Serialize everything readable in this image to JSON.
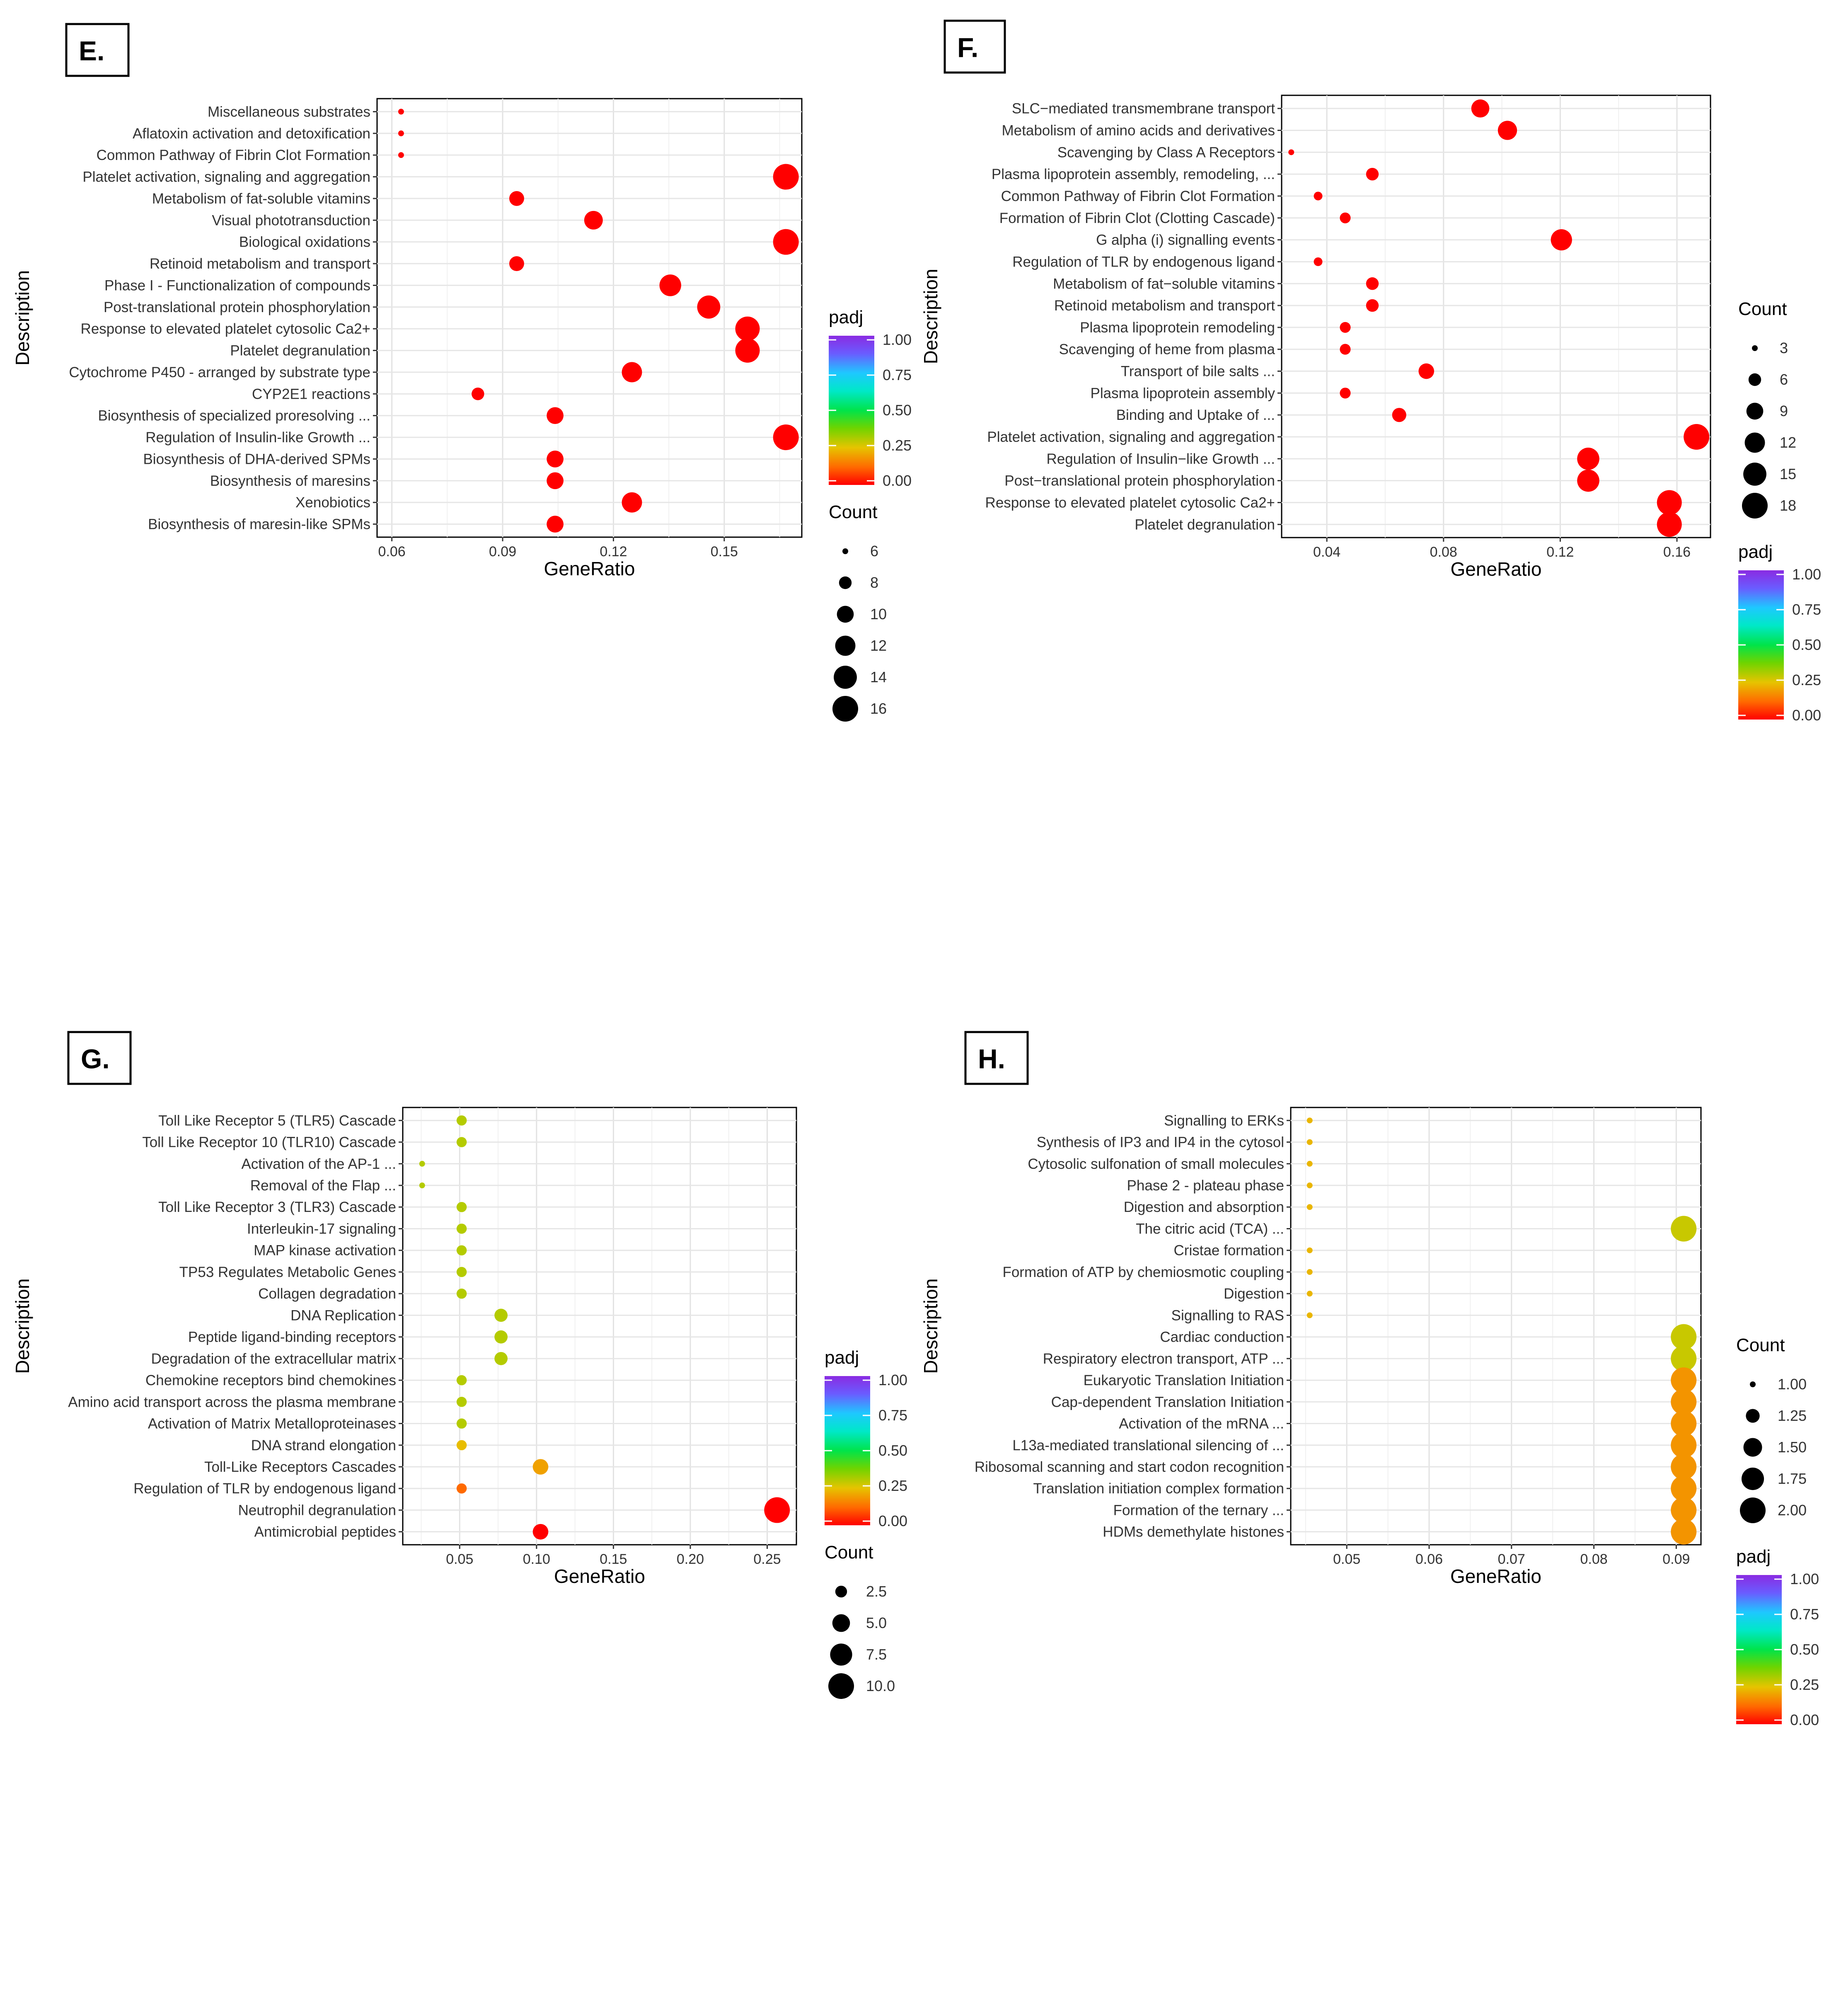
{
  "chart_data": [
    {
      "type": "scatter",
      "panel_label": "E.",
      "xlabel": "GeneRatio",
      "ylabel": "Description",
      "xlim": [
        0.056,
        0.171
      ],
      "xticks": [
        0.06,
        0.09,
        0.12,
        0.15
      ],
      "xtick_labels": [
        "0.06",
        "0.09",
        "0.12",
        "0.15"
      ],
      "categories": [
        "Miscellaneous substrates",
        "Aflatoxin activation and detoxification",
        "Common Pathway of Fibrin Clot Formation",
        "Platelet activation, signaling and aggregation",
        "Metabolism of fat-soluble vitamins",
        "Visual phototransduction",
        "Biological oxidations",
        "Retinoid metabolism and transport",
        "Phase I - Functionalization of compounds",
        "Post-translational protein phosphorylation",
        "Response to elevated platelet cytosolic Ca2+",
        "Platelet degranulation",
        "Cytochrome P450 - arranged by substrate type",
        "CYP2E1 reactions",
        "Biosynthesis of specialized proresolving ...",
        "Regulation of Insulin-like Growth ...",
        "Biosynthesis of DHA-derived SPMs",
        "Biosynthesis of maresins",
        "Xenobiotics",
        "Biosynthesis of maresin-like SPMs"
      ],
      "x": [
        0.0625,
        0.0625,
        0.0625,
        0.1667,
        0.0938,
        0.1146,
        0.1667,
        0.0938,
        0.1354,
        0.1458,
        0.1563,
        0.1563,
        0.125,
        0.0833,
        0.1042,
        0.1667,
        0.1042,
        0.1042,
        0.125,
        0.1042
      ],
      "count": [
        6,
        6,
        6,
        16,
        9,
        11,
        16,
        9,
        13,
        14,
        15,
        15,
        12,
        8,
        10,
        16,
        10,
        10,
        12,
        10
      ],
      "padj": [
        0.0,
        0.0,
        0.0,
        0.0,
        0.0,
        0.0,
        0.0,
        0.0,
        0.0,
        0.0,
        0.0,
        0.0,
        0.0,
        0.0,
        0.0,
        0.0,
        0.0,
        0.0,
        0.0,
        0.0
      ],
      "count_range": [
        6,
        16
      ],
      "legend_order": [
        "padj",
        "count"
      ],
      "padj_legend": {
        "title": "padj",
        "ticks": [
          "1.00",
          "0.75",
          "0.50",
          "0.25",
          "0.00"
        ]
      },
      "count_legend": {
        "title": "Count",
        "values": [
          6,
          8,
          10,
          12,
          14,
          16
        ],
        "labels": [
          "6",
          "8",
          "10",
          "12",
          "14",
          "16"
        ]
      }
    },
    {
      "type": "scatter",
      "panel_label": "F.",
      "xlabel": "GeneRatio",
      "ylabel": "Description",
      "xlim": [
        0.0245,
        0.1715
      ],
      "xticks": [
        0.04,
        0.08,
        0.12,
        0.16
      ],
      "xtick_labels": [
        "0.04",
        "0.08",
        "0.12",
        "0.16"
      ],
      "categories": [
        "SLC−mediated transmembrane transport",
        "Metabolism of amino acids and derivatives",
        "Scavenging by Class A Receptors",
        "Plasma lipoprotein assembly, remodeling, ...",
        "Common Pathway of Fibrin Clot Formation",
        "Formation of Fibrin Clot (Clotting Cascade)",
        "G alpha (i) signalling events",
        "Regulation of TLR by endogenous ligand",
        "Metabolism of fat−soluble vitamins",
        "Retinoid metabolism and transport",
        "Plasma lipoprotein remodeling",
        "Scavenging of heme from plasma",
        "Transport of bile salts ...",
        "Plasma lipoprotein assembly",
        "Binding and Uptake of ...",
        "Platelet activation, signaling and aggregation",
        "Regulation of Insulin−like Growth ...",
        "Post−translational protein phosphorylation",
        "Response to elevated platelet cytosolic Ca2+",
        "Platelet degranulation"
      ],
      "x": [
        0.0926,
        0.1019,
        0.0278,
        0.0556,
        0.037,
        0.0463,
        0.1204,
        0.037,
        0.0556,
        0.0556,
        0.0463,
        0.0463,
        0.0741,
        0.0463,
        0.0648,
        0.1667,
        0.1296,
        0.1296,
        0.1574,
        0.1574
      ],
      "count": [
        10,
        11,
        3,
        6,
        4,
        5,
        13,
        4,
        6,
        6,
        5,
        5,
        8,
        5,
        7,
        18,
        14,
        14,
        17,
        17
      ],
      "padj": [
        0.0,
        0.0,
        0.0,
        0.0,
        0.0,
        0.0,
        0.0,
        0.0,
        0.0,
        0.0,
        0.0,
        0.0,
        0.0,
        0.0,
        0.0,
        0.0,
        0.0,
        0.0,
        0.0,
        0.0
      ],
      "count_range": [
        3,
        18
      ],
      "legend_order": [
        "count",
        "padj"
      ],
      "padj_legend": {
        "title": "padj",
        "ticks": [
          "1.00",
          "0.75",
          "0.50",
          "0.25",
          "0.00"
        ]
      },
      "count_legend": {
        "title": "Count",
        "values": [
          3,
          6,
          9,
          12,
          15,
          18
        ],
        "labels": [
          "3",
          "6",
          "9",
          "12",
          "15",
          "18"
        ]
      }
    },
    {
      "type": "scatter",
      "panel_label": "G.",
      "xlabel": "GeneRatio",
      "ylabel": "Description",
      "xlim": [
        0.013,
        0.269
      ],
      "xticks": [
        0.05,
        0.1,
        0.15,
        0.2,
        0.25
      ],
      "xtick_labels": [
        "0.05",
        "0.10",
        "0.15",
        "0.20",
        "0.25"
      ],
      "categories": [
        "Toll Like Receptor 5 (TLR5) Cascade",
        "Toll Like Receptor 10 (TLR10) Cascade",
        "Activation of the AP-1 ...",
        "Removal of the Flap ...",
        "Toll Like Receptor 3 (TLR3) Cascade",
        "Interleukin-17 signaling",
        "MAP kinase activation",
        "TP53 Regulates Metabolic Genes",
        "Collagen degradation",
        "DNA Replication",
        "Peptide ligand-binding receptors",
        "Degradation of the extracellular matrix",
        "Chemokine receptors bind chemokines",
        "Amino acid transport across the plasma membrane",
        "Activation of Matrix Metalloproteinases",
        "DNA strand elongation",
        "Toll-Like Receptors Cascades",
        "Regulation of TLR by endogenous ligand",
        "Neutrophil degranulation",
        "Antimicrobial peptides"
      ],
      "x": [
        0.0513,
        0.0513,
        0.0256,
        0.0256,
        0.0513,
        0.0513,
        0.0513,
        0.0513,
        0.0513,
        0.0769,
        0.0769,
        0.0769,
        0.0513,
        0.0513,
        0.0513,
        0.0513,
        0.1026,
        0.0513,
        0.2564,
        0.1026
      ],
      "count": [
        2,
        2,
        1,
        1,
        2,
        2,
        2,
        2,
        2,
        3,
        3,
        3,
        2,
        2,
        2,
        2,
        4,
        2,
        10,
        4
      ],
      "padj": [
        0.3,
        0.3,
        0.3,
        0.3,
        0.3,
        0.3,
        0.3,
        0.3,
        0.3,
        0.3,
        0.3,
        0.3,
        0.3,
        0.3,
        0.3,
        0.24,
        0.2,
        0.12,
        0.0,
        0.0
      ],
      "count_range": [
        1,
        10
      ],
      "legend_order": [
        "padj",
        "count"
      ],
      "padj_legend": {
        "title": "padj",
        "ticks": [
          "1.00",
          "0.75",
          "0.50",
          "0.25",
          "0.00"
        ]
      },
      "count_legend": {
        "title": "Count",
        "values": [
          2.5,
          5.0,
          7.5,
          10.0
        ],
        "labels": [
          "2.5",
          "5.0",
          "7.5",
          "10.0"
        ]
      }
    },
    {
      "type": "scatter",
      "panel_label": "H.",
      "xlabel": "GeneRatio",
      "ylabel": "Description",
      "xlim": [
        0.0432,
        0.093
      ],
      "xticks": [
        0.05,
        0.06,
        0.07,
        0.08,
        0.09
      ],
      "xtick_labels": [
        "0.05",
        "0.06",
        "0.07",
        "0.08",
        "0.09"
      ],
      "categories": [
        "Signalling to ERKs",
        "Synthesis of IP3 and IP4 in the cytosol",
        "Cytosolic sulfonation of small molecules",
        "Phase 2 - plateau phase",
        "Digestion and absorption",
        "The citric acid (TCA) ...",
        "Cristae formation",
        "Formation of ATP by chemiosmotic coupling",
        "Digestion",
        "Signalling to RAS",
        "Cardiac conduction",
        "Respiratory electron transport, ATP ...",
        "Eukaryotic Translation Initiation",
        "Cap-dependent Translation Initiation",
        "Activation of the mRNA ...",
        "L13a-mediated translational silencing of ...",
        "Ribosomal scanning and start codon recognition",
        "Translation initiation complex formation",
        "Formation of the ternary ...",
        "HDMs demethylate histones"
      ],
      "x": [
        0.0455,
        0.0455,
        0.0455,
        0.0455,
        0.0455,
        0.0909,
        0.0455,
        0.0455,
        0.0455,
        0.0455,
        0.0909,
        0.0909,
        0.0909,
        0.0909,
        0.0909,
        0.0909,
        0.0909,
        0.0909,
        0.0909,
        0.0909
      ],
      "count": [
        1,
        1,
        1,
        1,
        1,
        2,
        1,
        1,
        1,
        1,
        2,
        2,
        2,
        2,
        2,
        2,
        2,
        2,
        2,
        2
      ],
      "padj": [
        0.23,
        0.23,
        0.23,
        0.23,
        0.23,
        0.28,
        0.23,
        0.23,
        0.23,
        0.23,
        0.28,
        0.28,
        0.18,
        0.18,
        0.18,
        0.18,
        0.18,
        0.18,
        0.18,
        0.18
      ],
      "count_range": [
        1,
        2
      ],
      "legend_order": [
        "count",
        "padj"
      ],
      "padj_legend": {
        "title": "padj",
        "ticks": [
          "1.00",
          "0.75",
          "0.50",
          "0.25",
          "0.00"
        ]
      },
      "count_legend": {
        "title": "Count",
        "values": [
          1.0,
          1.25,
          1.5,
          1.75,
          2.0
        ],
        "labels": [
          "1.00",
          "1.25",
          "1.50",
          "1.75",
          "2.00"
        ]
      }
    }
  ]
}
